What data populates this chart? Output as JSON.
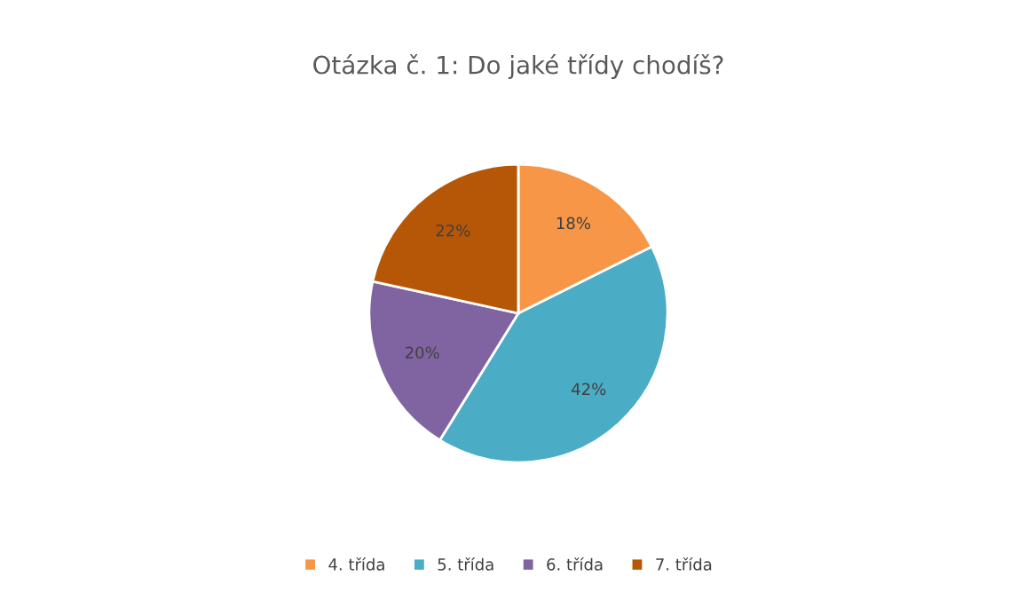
{
  "chart_data": {
    "type": "pie",
    "title": "Otázka č. 1: Do jaké třídy chodíš?",
    "categories": [
      "4. třída",
      "5. třída",
      "6. třída",
      "7. třída"
    ],
    "values": [
      18,
      42,
      20,
      22
    ],
    "colors": [
      "#f79646",
      "#4bacc6",
      "#8064a2",
      "#b65708"
    ],
    "data_labels": true,
    "value_labels": [
      "18%",
      "42%",
      "20%",
      "22%"
    ],
    "legend": "bottom"
  }
}
